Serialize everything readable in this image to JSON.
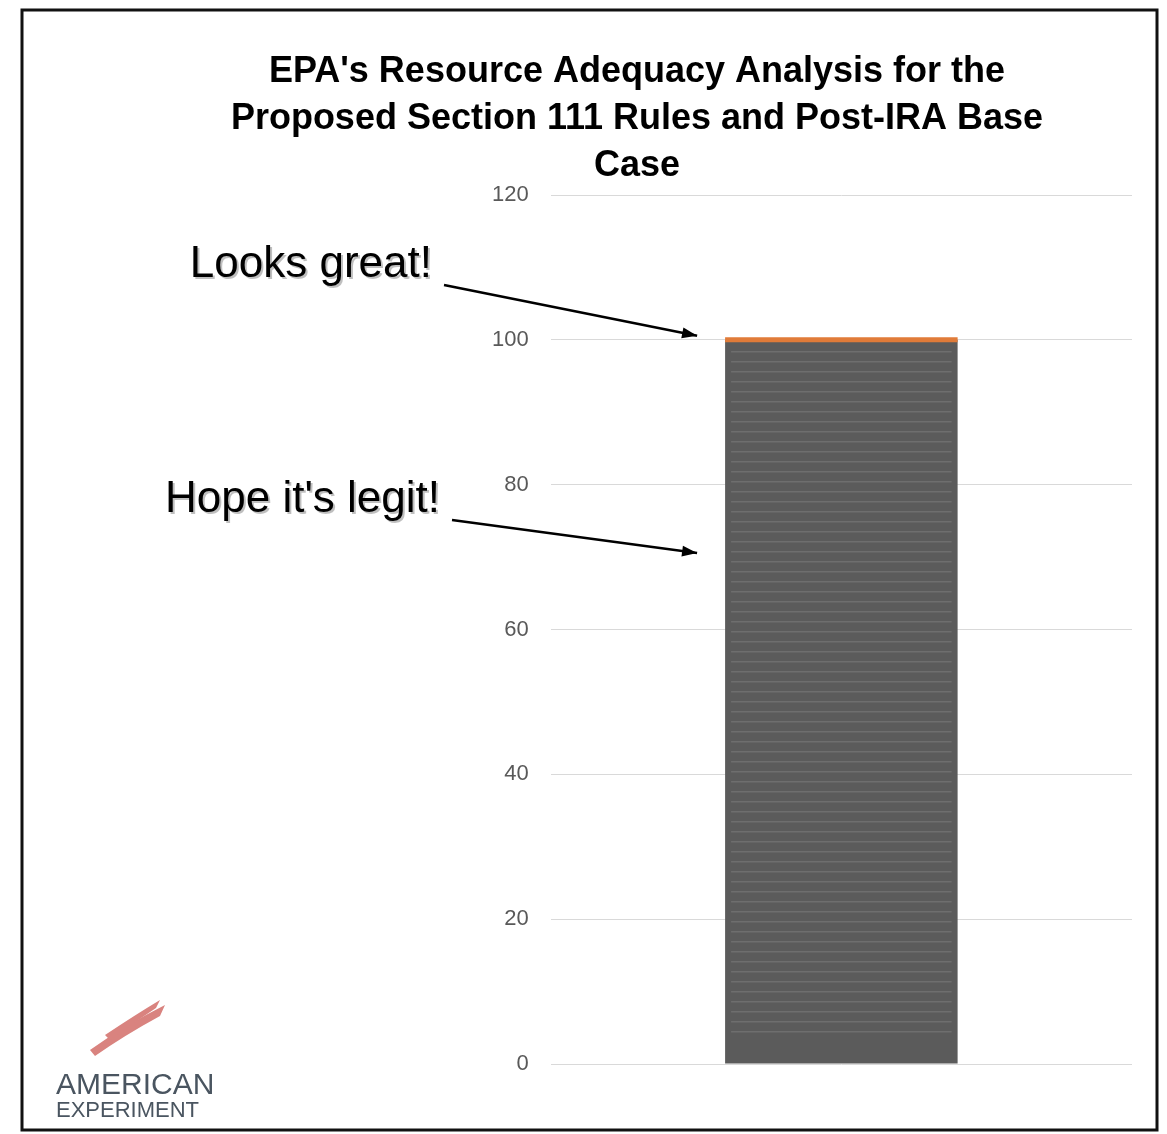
{
  "chart_data": {
    "type": "bar",
    "title": "EPA's Resource Adequacy Analysis for the Proposed Section 111 Rules and Post-IRA Base Case",
    "categories": [
      null
    ],
    "values": [
      100
    ],
    "color": "#5b5b5b",
    "ylim": [
      0,
      120
    ],
    "yticks": [
      0,
      20,
      40,
      60,
      80,
      100,
      120
    ],
    "grid": true,
    "tick_labels": "y",
    "annotations": [
      {
        "text": "Looks great!",
        "y": 100
      },
      {
        "text": "Hope it's legit!",
        "y": 70
      }
    ],
    "logo": [
      "AMERICAN",
      "EXPERIMENT"
    ]
  }
}
